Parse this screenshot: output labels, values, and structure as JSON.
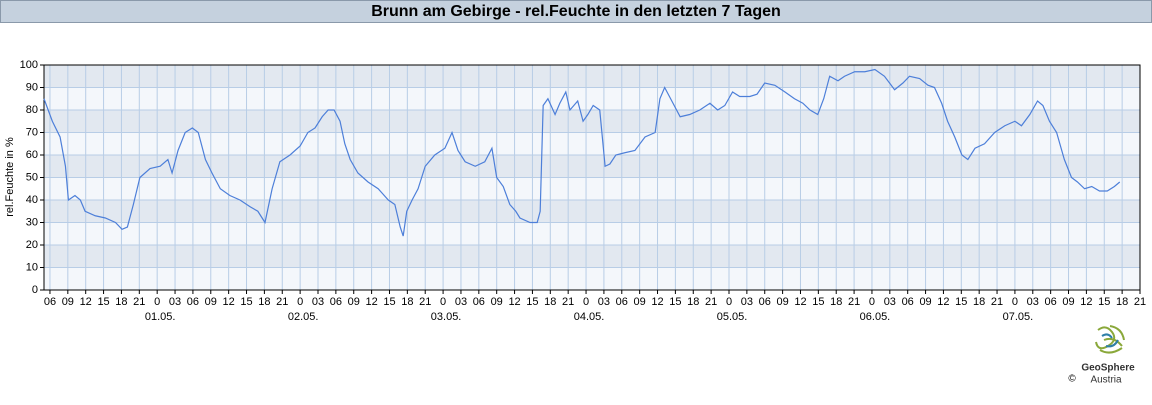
{
  "chart_data": {
    "type": "line",
    "title": "Brunn am Gebirge - rel.Feuchte in den letzten 7 Tagen",
    "y_label": "rel.Feuchte in %",
    "color": "#4d7fd9",
    "grid": true,
    "x": [
      -19.0,
      -17.6,
      -16.3,
      -15.4,
      -14.9,
      -13.8,
      -12.9,
      -12.1,
      -10.4,
      -8.7,
      -7.0,
      -5.9,
      -5.0,
      -4.0,
      -2.9,
      -1.2,
      0.5,
      1.8,
      2.5,
      3.5,
      4.7,
      5.9,
      6.9,
      8.1,
      9.2,
      10.6,
      12.2,
      13.9,
      15.6,
      16.9,
      18.1,
      19.3,
      20.6,
      22.3,
      24.0,
      25.3,
      26.5,
      27.7,
      28.7,
      29.7,
      30.7,
      31.5,
      32.4,
      33.7,
      35.4,
      37.1,
      38.8,
      39.9,
      40.8,
      41.3,
      41.9,
      42.8,
      43.8,
      45.0,
      46.6,
      48.3,
      49.5,
      50.5,
      51.7,
      53.4,
      55.0,
      56.2,
      57.0,
      58.1,
      59.2,
      60.2,
      60.9,
      62.6,
      63.8,
      64.3,
      64.8,
      65.6,
      66.8,
      67.6,
      68.6,
      69.3,
      70.6,
      71.5,
      72.3,
      73.2,
      74.3,
      75.2,
      76.0,
      77.0,
      78.5,
      80.2,
      81.9,
      83.6,
      84.4,
      85.2,
      86.4,
      87.8,
      89.4,
      91.1,
      92.8,
      94.1,
      95.3,
      96.6,
      97.8,
      99.5,
      100.7,
      102.0,
      103.7,
      105.4,
      107.0,
      108.4,
      109.6,
      110.9,
      111.9,
      112.9,
      114.3,
      115.4,
      117.1,
      118.8,
      120.5,
      122.1,
      123.8,
      125.2,
      126.3,
      128.0,
      129.4,
      130.5,
      131.7,
      132.7,
      133.9,
      135.1,
      136.1,
      137.3,
      138.9,
      140.6,
      142.3,
      144.0,
      145.1,
      146.5,
      147.8,
      148.7,
      149.8,
      151.0,
      152.3,
      153.5,
      154.5,
      155.7,
      156.9,
      158.2,
      159.5,
      160.7,
      161.6
    ],
    "values": [
      85,
      75,
      68,
      55,
      40,
      42,
      40,
      35,
      33,
      32,
      30,
      27,
      28,
      38,
      50,
      54,
      55,
      58,
      52,
      62,
      70,
      72,
      70,
      58,
      52,
      45,
      42,
      40,
      37,
      35,
      30,
      45,
      57,
      60,
      64,
      70,
      72,
      77,
      80,
      80,
      75,
      65,
      58,
      52,
      48,
      45,
      40,
      38,
      28,
      24,
      35,
      40,
      45,
      55,
      60,
      63,
      70,
      62,
      57,
      55,
      57,
      63,
      50,
      46,
      38,
      35,
      32,
      30,
      30,
      35,
      82,
      85,
      78,
      83,
      88,
      80,
      84,
      75,
      78,
      82,
      80,
      55,
      56,
      60,
      61,
      62,
      68,
      70,
      85,
      90,
      84,
      77,
      78,
      80,
      83,
      80,
      82,
      88,
      86,
      86,
      87,
      92,
      91,
      88,
      85,
      83,
      80,
      78,
      85,
      95,
      93,
      95,
      97,
      97,
      98,
      95,
      89,
      92,
      95,
      94,
      91,
      90,
      83,
      75,
      68,
      60,
      58,
      63,
      65,
      70,
      73,
      75,
      73,
      78,
      84,
      82,
      75,
      70,
      58,
      50,
      48,
      45,
      46,
      44,
      44,
      46,
      48
    ],
    "xlim": [
      -19,
      165
    ],
    "xticks": [
      {
        "value": -18,
        "label": "06"
      },
      {
        "value": -15,
        "label": "09"
      },
      {
        "value": -12,
        "label": "12"
      },
      {
        "value": -9,
        "label": "15"
      },
      {
        "value": -6,
        "label": "18"
      },
      {
        "value": -3,
        "label": "21"
      },
      0,
      {
        "value": 3,
        "label": "03"
      },
      {
        "value": 6,
        "label": "06"
      },
      {
        "value": 9,
        "label": "09"
      },
      12,
      15,
      18,
      21,
      {
        "value": 24,
        "label": "0"
      },
      {
        "value": 27,
        "label": "03"
      },
      {
        "value": 30,
        "label": "06"
      },
      {
        "value": 33,
        "label": "09"
      },
      {
        "value": 36,
        "label": "12"
      },
      {
        "value": 39,
        "label": "15"
      },
      {
        "value": 42,
        "label": "18"
      },
      {
        "value": 45,
        "label": "21"
      },
      {
        "value": 48,
        "label": "0"
      },
      {
        "value": 51,
        "label": "03"
      },
      {
        "value": 54,
        "label": "06"
      },
      {
        "value": 57,
        "label": "09"
      },
      {
        "value": 60,
        "label": "12"
      },
      {
        "value": 63,
        "label": "15"
      },
      {
        "value": 66,
        "label": "18"
      },
      {
        "value": 69,
        "label": "21"
      },
      {
        "value": 72,
        "label": "0"
      },
      {
        "value": 75,
        "label": "03"
      },
      {
        "value": 78,
        "label": "06"
      },
      {
        "value": 81,
        "label": "09"
      },
      {
        "value": 84,
        "label": "12"
      },
      {
        "value": 87,
        "label": "15"
      },
      {
        "value": 90,
        "label": "18"
      },
      {
        "value": 93,
        "label": "21"
      },
      {
        "value": 96,
        "label": "0"
      },
      {
        "value": 99,
        "label": "03"
      },
      {
        "value": 102,
        "label": "06"
      },
      {
        "value": 105,
        "label": "09"
      },
      {
        "value": 108,
        "label": "12"
      },
      {
        "value": 111,
        "label": "15"
      },
      {
        "value": 114,
        "label": "18"
      },
      {
        "value": 117,
        "label": "21"
      },
      {
        "value": 120,
        "label": "0"
      },
      {
        "value": 123,
        "label": "03"
      },
      {
        "value": 126,
        "label": "06"
      },
      {
        "value": 129,
        "label": "09"
      },
      {
        "value": 132,
        "label": "12"
      },
      {
        "value": 135,
        "label": "15"
      },
      {
        "value": 138,
        "label": "18"
      },
      {
        "value": 141,
        "label": "21"
      },
      {
        "value": 144,
        "label": "0"
      },
      {
        "value": 147,
        "label": "03"
      },
      {
        "value": 150,
        "label": "06"
      },
      {
        "value": 153,
        "label": "09"
      },
      {
        "value": 156,
        "label": "12"
      },
      {
        "value": 159,
        "label": "15"
      },
      {
        "value": 162,
        "label": "18"
      },
      {
        "value": 165,
        "label": "21"
      }
    ],
    "date_labels": [
      {
        "value": 0,
        "label": "01.05."
      },
      {
        "value": 24,
        "label": "02.05."
      },
      {
        "value": 48,
        "label": "03.05."
      },
      {
        "value": 72,
        "label": "04.05."
      },
      {
        "value": 96,
        "label": "05.05."
      },
      {
        "value": 120,
        "label": "06.05."
      },
      {
        "value": 144,
        "label": "07.05."
      }
    ],
    "ylim": [
      0,
      100
    ],
    "yticks": [
      0,
      10,
      20,
      30,
      40,
      50,
      60,
      70,
      80,
      90,
      100
    ]
  },
  "logo": {
    "name": "GeoSphere",
    "sub": "Austria",
    "copyright": "©"
  }
}
